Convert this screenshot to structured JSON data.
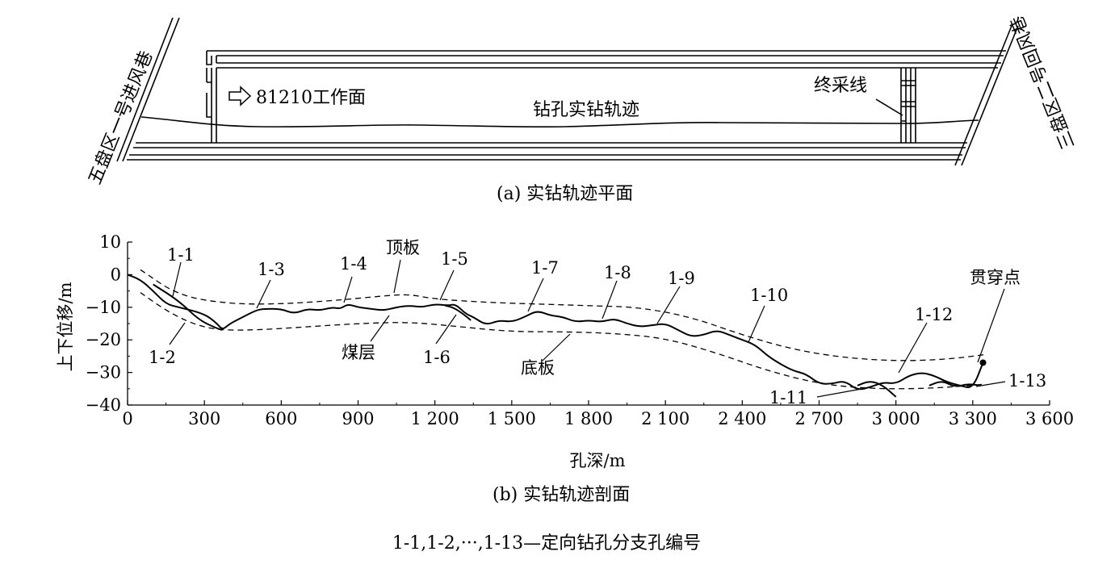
{
  "plan": {
    "left_roadway_label": "五盘区一号进风巷",
    "right_roadway_label": "三盘区二号回风巷",
    "workface_label": "81210工作面",
    "workface_arrow_icon": "hollow-right-arrow",
    "trajectory_label": "钻孔实钻轨迹",
    "stop_line_label": "终采线",
    "caption": "(a)  实钻轨迹平面"
  },
  "section": {
    "ylabel": "上下位移/m",
    "xlabel": "孔深/m",
    "caption": "(b)  实钻轨迹剖面",
    "roof_label": "顶板",
    "seam_label": "煤层",
    "floor_label": "底板",
    "breakthrough_label": "贯穿点",
    "branch_labels": [
      "1-1",
      "1-2",
      "1-3",
      "1-4",
      "1-5",
      "1-6",
      "1-7",
      "1-8",
      "1-9",
      "1-10",
      "1-11",
      "1-12",
      "1-13"
    ]
  },
  "footnote": "1-1,1-2,···,1-13—定向钻孔分支孔编号",
  "chart_data": {
    "type": "line",
    "title": "",
    "xlabel": "孔深/m",
    "ylabel": "上下位移/m",
    "xlim": [
      0,
      3600
    ],
    "ylim": [
      -40,
      10
    ],
    "x_ticks": [
      0,
      300,
      600,
      900,
      1200,
      1500,
      1800,
      2100,
      2400,
      2700,
      3000,
      3300,
      3600
    ],
    "x_tick_labels": [
      "0",
      "300",
      "600",
      "900",
      "1 200",
      "1 500",
      "1 800",
      "2 100",
      "2 400",
      "2 700",
      "3 000",
      "3 300",
      "3 600"
    ],
    "y_ticks": [
      10,
      0,
      -10,
      -20,
      -30,
      -40
    ],
    "y_tick_labels": [
      "10",
      "0",
      "−10",
      "−20",
      "−30",
      "−40"
    ],
    "series": [
      {
        "name": "顶板",
        "style": "dashed",
        "x": [
          50,
          200,
          400,
          600,
          800,
          1000,
          1100,
          1200,
          1400,
          1600,
          1800,
          2000,
          2200,
          2400,
          2600,
          2800,
          3000,
          3200,
          3350
        ],
        "y": [
          1.5,
          -6.5,
          -9,
          -9,
          -8,
          -6.5,
          -6,
          -7.5,
          -8.5,
          -9,
          -9.5,
          -10,
          -13,
          -18.5,
          -23,
          -25.5,
          -26.5,
          -26,
          -24.5
        ]
      },
      {
        "name": "底板",
        "style": "dashed",
        "x": [
          50,
          150,
          250,
          350,
          500,
          700,
          900,
          1100,
          1300,
          1500,
          1700,
          1900,
          2100,
          2300,
          2500,
          2700,
          2900,
          3100,
          3300,
          3350
        ],
        "y": [
          -5.5,
          -11,
          -15,
          -17,
          -17,
          -16,
          -15,
          -14.5,
          -16,
          -17.5,
          -17.5,
          -18,
          -19.5,
          -24,
          -29.5,
          -33.5,
          -35,
          -35,
          -34,
          -33.5
        ]
      },
      {
        "name": "实钻轨迹",
        "style": "solid",
        "x": [
          0,
          50,
          100,
          150,
          200,
          300,
          350,
          370,
          400,
          450,
          500,
          530,
          600,
          650,
          700,
          750,
          800,
          830,
          860,
          900,
          950,
          1000,
          1050,
          1100,
          1150,
          1200,
          1250,
          1280,
          1320,
          1350,
          1400,
          1450,
          1500,
          1550,
          1600,
          1650,
          1700,
          1750,
          1800,
          1850,
          1900,
          1950,
          2000,
          2050,
          2100,
          2150,
          2200,
          2250,
          2300,
          2350,
          2400,
          2450,
          2500,
          2550,
          2600,
          2650,
          2700,
          2750,
          2800,
          2850,
          2900,
          2950,
          3000,
          3050,
          3100,
          3150,
          3200,
          3250,
          3300,
          3340
        ],
        "y": [
          0,
          -1.5,
          -5,
          -9,
          -10,
          -12,
          -15,
          -17,
          -15,
          -13,
          -11,
          -10.5,
          -10.5,
          -12,
          -10.5,
          -11,
          -10,
          -10.5,
          -9,
          -10,
          -10.5,
          -11,
          -10,
          -9.5,
          -10,
          -9,
          -9.5,
          -9,
          -12,
          -13,
          -15.5,
          -14,
          -14.5,
          -13,
          -11,
          -12.5,
          -13,
          -14.5,
          -14,
          -14.5,
          -13.5,
          -15,
          -16,
          -15.5,
          -15,
          -17,
          -19,
          -18.5,
          -17,
          -18.5,
          -20,
          -21.5,
          -25,
          -27.5,
          -29.5,
          -30.5,
          -33.5,
          -33.5,
          -32.5,
          -35.5,
          -34.5,
          -33,
          -33.5,
          -31,
          -30,
          -31,
          -33,
          -34,
          -35,
          -27
        ]
      },
      {
        "name": "1-2分支",
        "style": "solid",
        "x": [
          100,
          200,
          280,
          350,
          370
        ],
        "y": [
          -3,
          -8,
          -14,
          -16.5,
          -17
        ]
      },
      {
        "name": "1-6分支",
        "style": "solid",
        "x": [
          1240,
          1270,
          1310,
          1340
        ],
        "y": [
          -9.5,
          -10,
          -12,
          -14
        ]
      },
      {
        "name": "1-11分支",
        "style": "solid",
        "x": [
          2850,
          2900,
          2950,
          3000
        ],
        "y": [
          -34,
          -32.5,
          -34,
          -37.5
        ]
      },
      {
        "name": "1-13分支",
        "style": "solid",
        "x": [
          3130,
          3180,
          3230,
          3280,
          3330
        ],
        "y": [
          -34,
          -32.5,
          -34.5,
          -33.5,
          -34
        ]
      }
    ],
    "markers": [
      {
        "name": "贯穿点",
        "x": 3340,
        "y": -27
      }
    ]
  }
}
